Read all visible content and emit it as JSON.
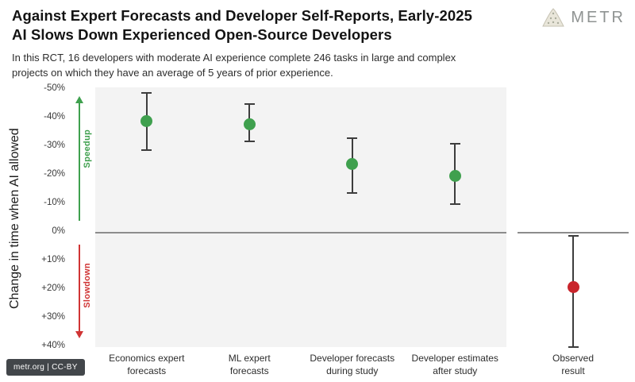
{
  "header": {
    "title_line1": "Against Expert Forecasts and Developer Self-Reports, Early-2025",
    "title_line2": "AI Slows Down Experienced Open-Source Developers",
    "subtitle_line1": "In this RCT, 16 developers with moderate AI experience complete 246 tasks in large and complex",
    "subtitle_line2": "projects on which they have an average of 5 years of prior experience.",
    "logo_text": "METR"
  },
  "footer": {
    "license_badge": "metr.org | CC-BY",
    "badge_bg": "#42464a"
  },
  "chart_data": {
    "type": "scatter",
    "title": "Against Expert Forecasts and Developer Self-Reports, Early-2025 AI Slows Down Experienced Open-Source Developers",
    "ylabel": "Change in time when AI allowed",
    "y_axis": {
      "min": -50,
      "max": 40,
      "inverted": true,
      "unit": "%",
      "ticks": [
        "-50%",
        "-40%",
        "-30%",
        "-20%",
        "-10%",
        "0%",
        "+10%",
        "+20%",
        "+30%",
        "+40%"
      ],
      "tick_values": [
        -50,
        -40,
        -30,
        -20,
        -10,
        0,
        10,
        20,
        30,
        40
      ]
    },
    "annotations": {
      "speedup_label": "Speedup",
      "speedup_color": "#3fa04e",
      "slowdown_label": "Slowdown",
      "slowdown_color": "#d03434"
    },
    "style": {
      "panel_bg": "#f3f3f3",
      "error_bar_color": "#3d3d3d",
      "zero_line_color": "#8c8c8c"
    },
    "points": [
      {
        "label": [
          "Economics expert",
          "forecasts"
        ],
        "value": -39,
        "ci": [
          -49,
          -29
        ],
        "color": "#3fa04e",
        "panel": "main"
      },
      {
        "label": [
          "ML expert",
          "forecasts"
        ],
        "value": -38,
        "ci": [
          -45,
          -32
        ],
        "color": "#3fa04e",
        "panel": "main"
      },
      {
        "label": [
          "Developer forecasts",
          "during study"
        ],
        "value": -24,
        "ci": [
          -33,
          -14
        ],
        "color": "#3fa04e",
        "panel": "main"
      },
      {
        "label": [
          "Developer estimates",
          "after study"
        ],
        "value": -20,
        "ci": [
          -31,
          -10
        ],
        "color": "#3fa04e",
        "panel": "main"
      },
      {
        "label": [
          "Observed",
          "result"
        ],
        "value": 19,
        "ci": [
          1,
          40
        ],
        "color": "#c9252c",
        "panel": "observed"
      }
    ]
  }
}
